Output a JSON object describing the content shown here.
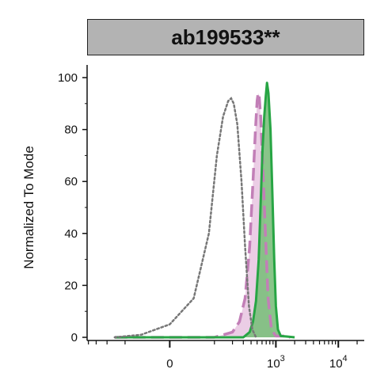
{
  "chart_data": {
    "type": "area",
    "title": "ab199533**",
    "xlabel": "",
    "ylabel": "Normalized To Mode",
    "ylim": [
      0,
      100
    ],
    "y_ticks": [
      "0",
      "20",
      "40",
      "60",
      "80",
      "100"
    ],
    "x_scale": "biexponential",
    "x_ticks": [
      {
        "base": "0",
        "exp": ""
      },
      {
        "base": "10",
        "exp": "3"
      },
      {
        "base": "10",
        "exp": "4"
      }
    ],
    "grid": false,
    "legend": "none",
    "colors": {
      "pink_dashed": "#c27fb7",
      "pink_fill": "#e8c4e1",
      "green_line": "#27a544",
      "green_fill": "#7cbf7c",
      "gray_dotted": "#777777"
    },
    "series": [
      {
        "style": "gray-dotted",
        "points": [
          [
            -150,
            0
          ],
          [
            -50,
            1
          ],
          [
            0,
            5
          ],
          [
            40,
            15
          ],
          [
            80,
            40
          ],
          [
            110,
            70
          ],
          [
            140,
            85
          ],
          [
            170,
            91
          ],
          [
            190,
            92
          ],
          [
            210,
            90
          ],
          [
            240,
            82
          ],
          [
            280,
            60
          ],
          [
            320,
            35
          ],
          [
            370,
            12
          ],
          [
            420,
            3
          ],
          [
            480,
            0
          ]
        ]
      },
      {
        "style": "pink-dashed-filled",
        "points": [
          [
            -150,
            0
          ],
          [
            100,
            0
          ],
          [
            200,
            2
          ],
          [
            260,
            6
          ],
          [
            320,
            15
          ],
          [
            380,
            35
          ],
          [
            430,
            60
          ],
          [
            470,
            80
          ],
          [
            500,
            91
          ],
          [
            520,
            94
          ],
          [
            540,
            93
          ],
          [
            570,
            85
          ],
          [
            620,
            65
          ],
          [
            680,
            40
          ],
          [
            750,
            15
          ],
          [
            850,
            3
          ],
          [
            1000,
            0.5
          ],
          [
            1400,
            0.5
          ],
          [
            1700,
            0
          ]
        ]
      },
      {
        "style": "green-solid-filled",
        "points": [
          [
            -150,
            0
          ],
          [
            300,
            0
          ],
          [
            380,
            2
          ],
          [
            430,
            6
          ],
          [
            480,
            14
          ],
          [
            530,
            30
          ],
          [
            570,
            52
          ],
          [
            610,
            72
          ],
          [
            650,
            85
          ],
          [
            690,
            93
          ],
          [
            720,
            98
          ],
          [
            760,
            94
          ],
          [
            820,
            80
          ],
          [
            880,
            55
          ],
          [
            940,
            30
          ],
          [
            1000,
            12
          ],
          [
            1080,
            3
          ],
          [
            1200,
            0.5
          ],
          [
            1500,
            0.3
          ],
          [
            2000,
            0
          ]
        ]
      }
    ]
  }
}
